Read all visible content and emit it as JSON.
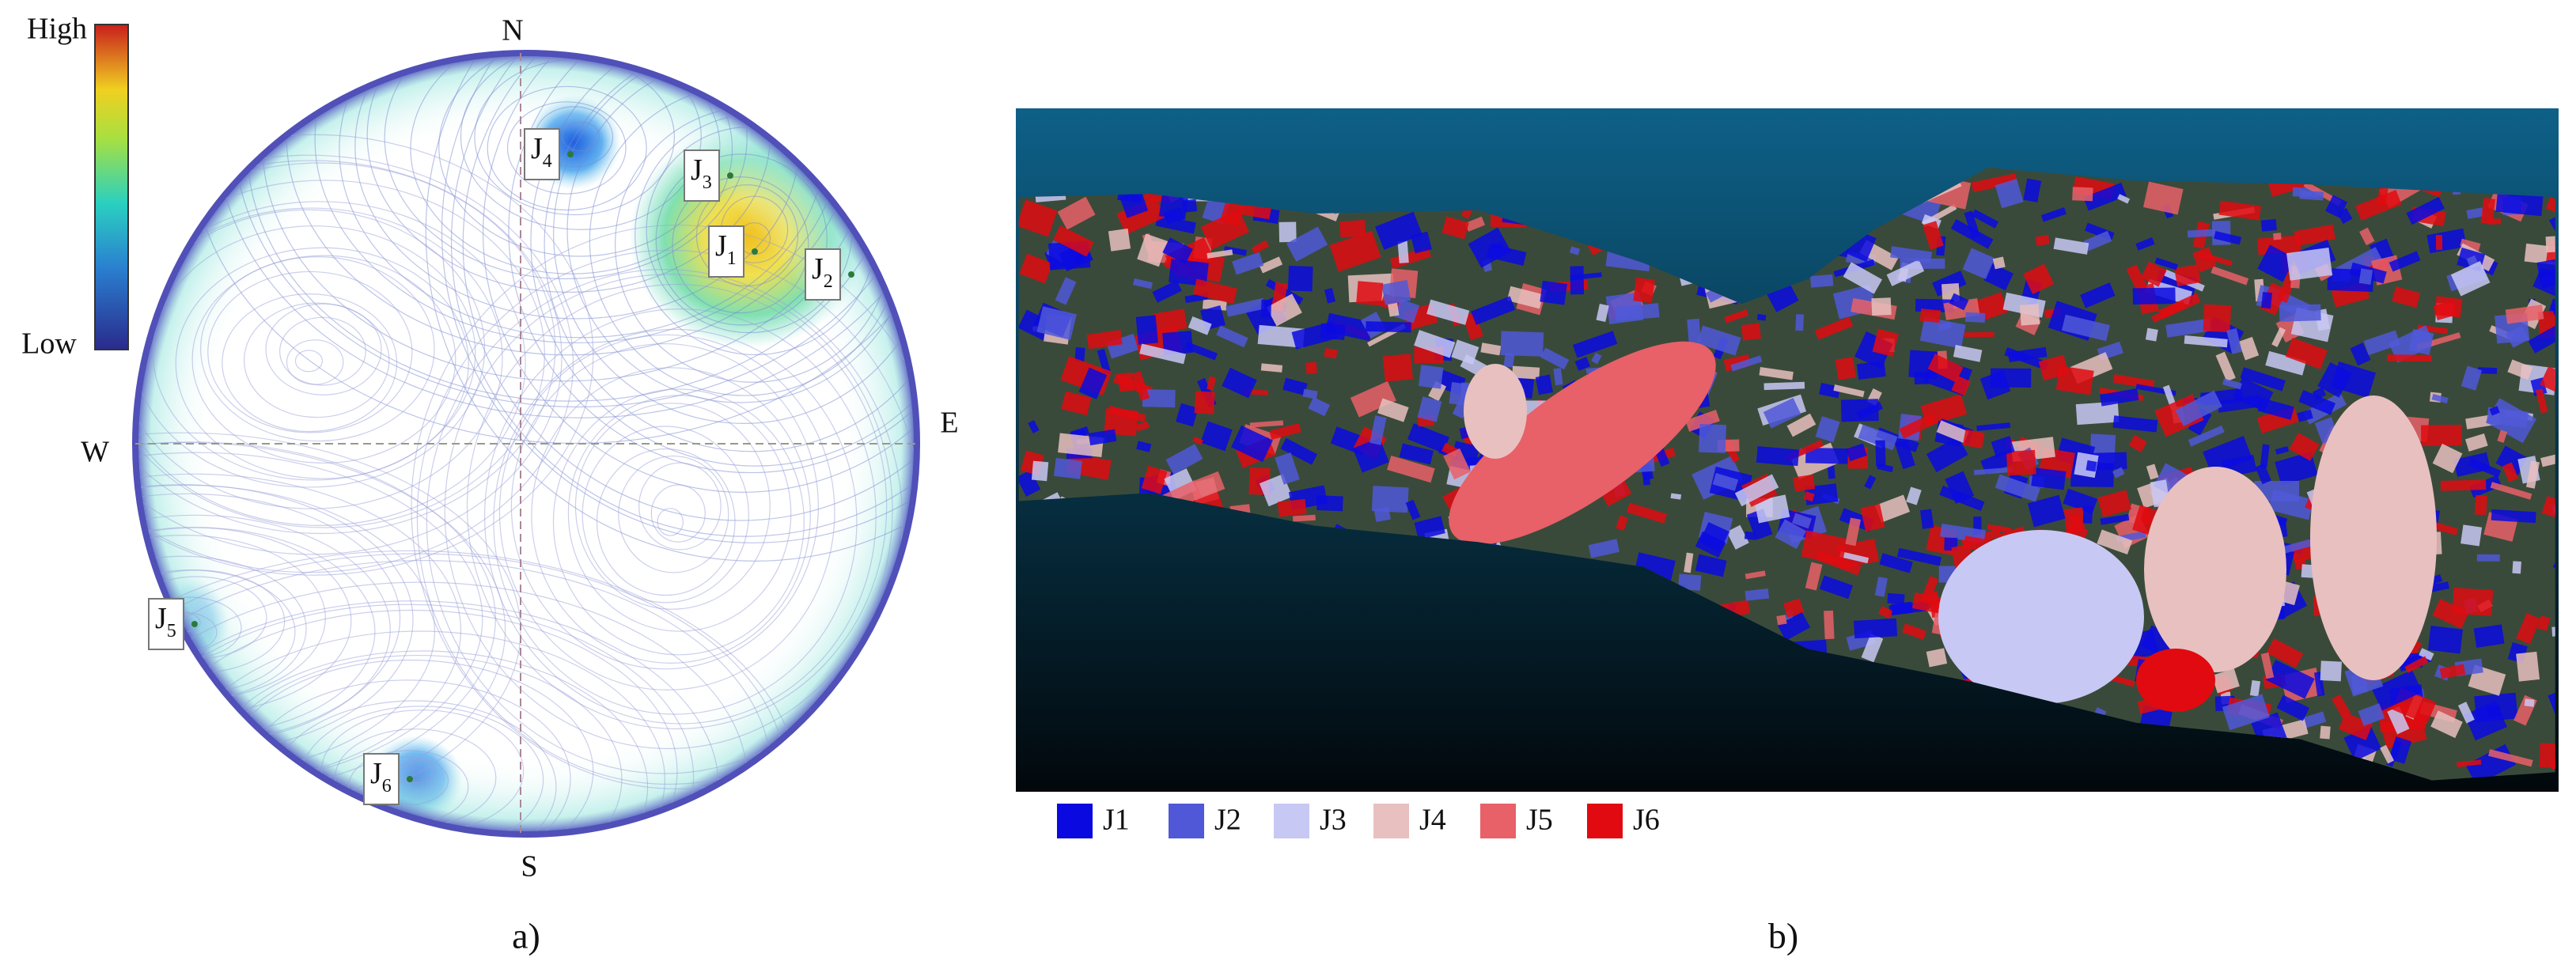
{
  "panel_a": {
    "colorbar": {
      "high": "High",
      "low": "Low"
    },
    "compass": {
      "north": "N",
      "east": "E",
      "south": "S",
      "west": "W"
    },
    "sets": [
      {
        "letter": "J",
        "sub": "1"
      },
      {
        "letter": "J",
        "sub": "2"
      },
      {
        "letter": "J",
        "sub": "3"
      },
      {
        "letter": "J",
        "sub": "4"
      },
      {
        "letter": "J",
        "sub": "5"
      },
      {
        "letter": "J",
        "sub": "6"
      }
    ],
    "caption": "a)"
  },
  "panel_b": {
    "legend": [
      {
        "label": "J1",
        "color": "#0a0ae0"
      },
      {
        "label": "J2",
        "color": "#5058d8"
      },
      {
        "label": "J3",
        "color": "#c8c8f4"
      },
      {
        "label": "J4",
        "color": "#e8c0c0"
      },
      {
        "label": "J5",
        "color": "#e86068"
      },
      {
        "label": "J6",
        "color": "#e00a10"
      }
    ],
    "caption": "b)"
  }
}
